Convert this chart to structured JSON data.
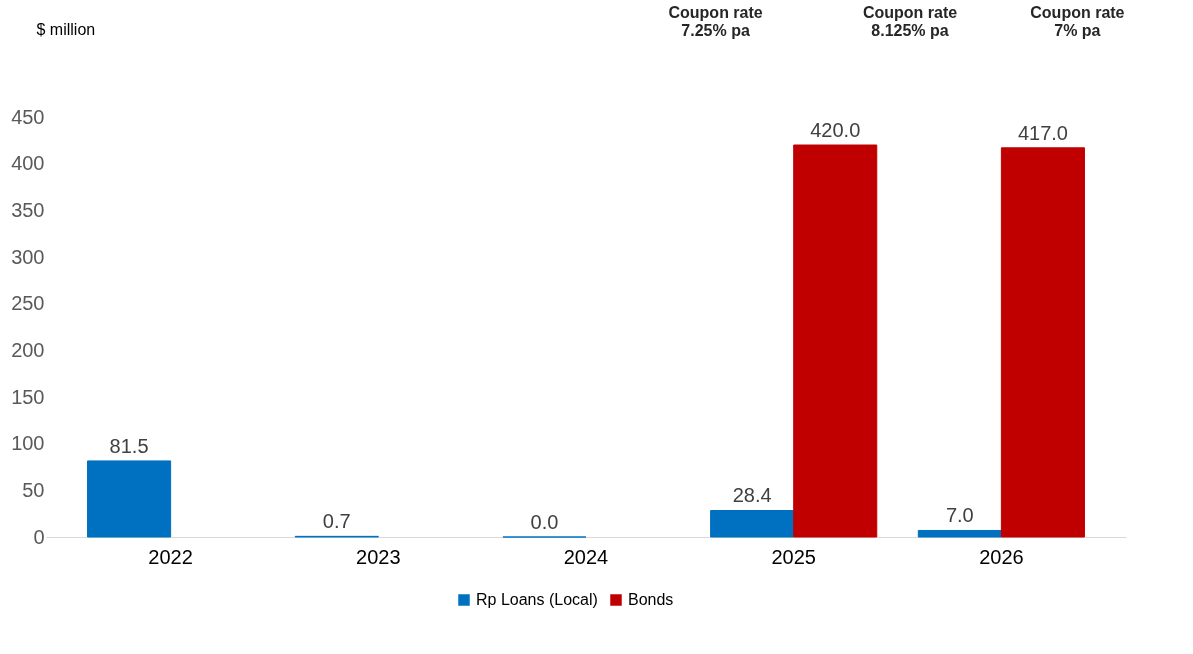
{
  "chart_data": {
    "type": "bar",
    "ylabel": "$ million",
    "categories": [
      "2022",
      "2023",
      "2024",
      "2025",
      "2026"
    ],
    "series": [
      {
        "name": "Rp Loans (Local)",
        "color": "#0070c0",
        "values": [
          81.5,
          0.7,
          0.0,
          28.4,
          7.0
        ],
        "value_labels": [
          "81.5",
          "0.7",
          "0.0",
          "28.4",
          "7.0"
        ]
      },
      {
        "name": "Bonds",
        "color": "#c00000",
        "values": [
          null,
          null,
          null,
          420.0,
          417.0
        ],
        "value_labels": [
          null,
          null,
          null,
          "420.0",
          "417.0"
        ]
      }
    ],
    "ylim": [
      0,
      450
    ],
    "yticks": [
      0,
      50,
      100,
      150,
      200,
      250,
      300,
      350,
      400,
      450
    ],
    "grid": false,
    "legend": "bottom",
    "annotations": [
      "Coupon rate\n7.25% pa",
      "Coupon rate\n8.125% pa",
      "Coupon rate\n7% pa"
    ]
  }
}
